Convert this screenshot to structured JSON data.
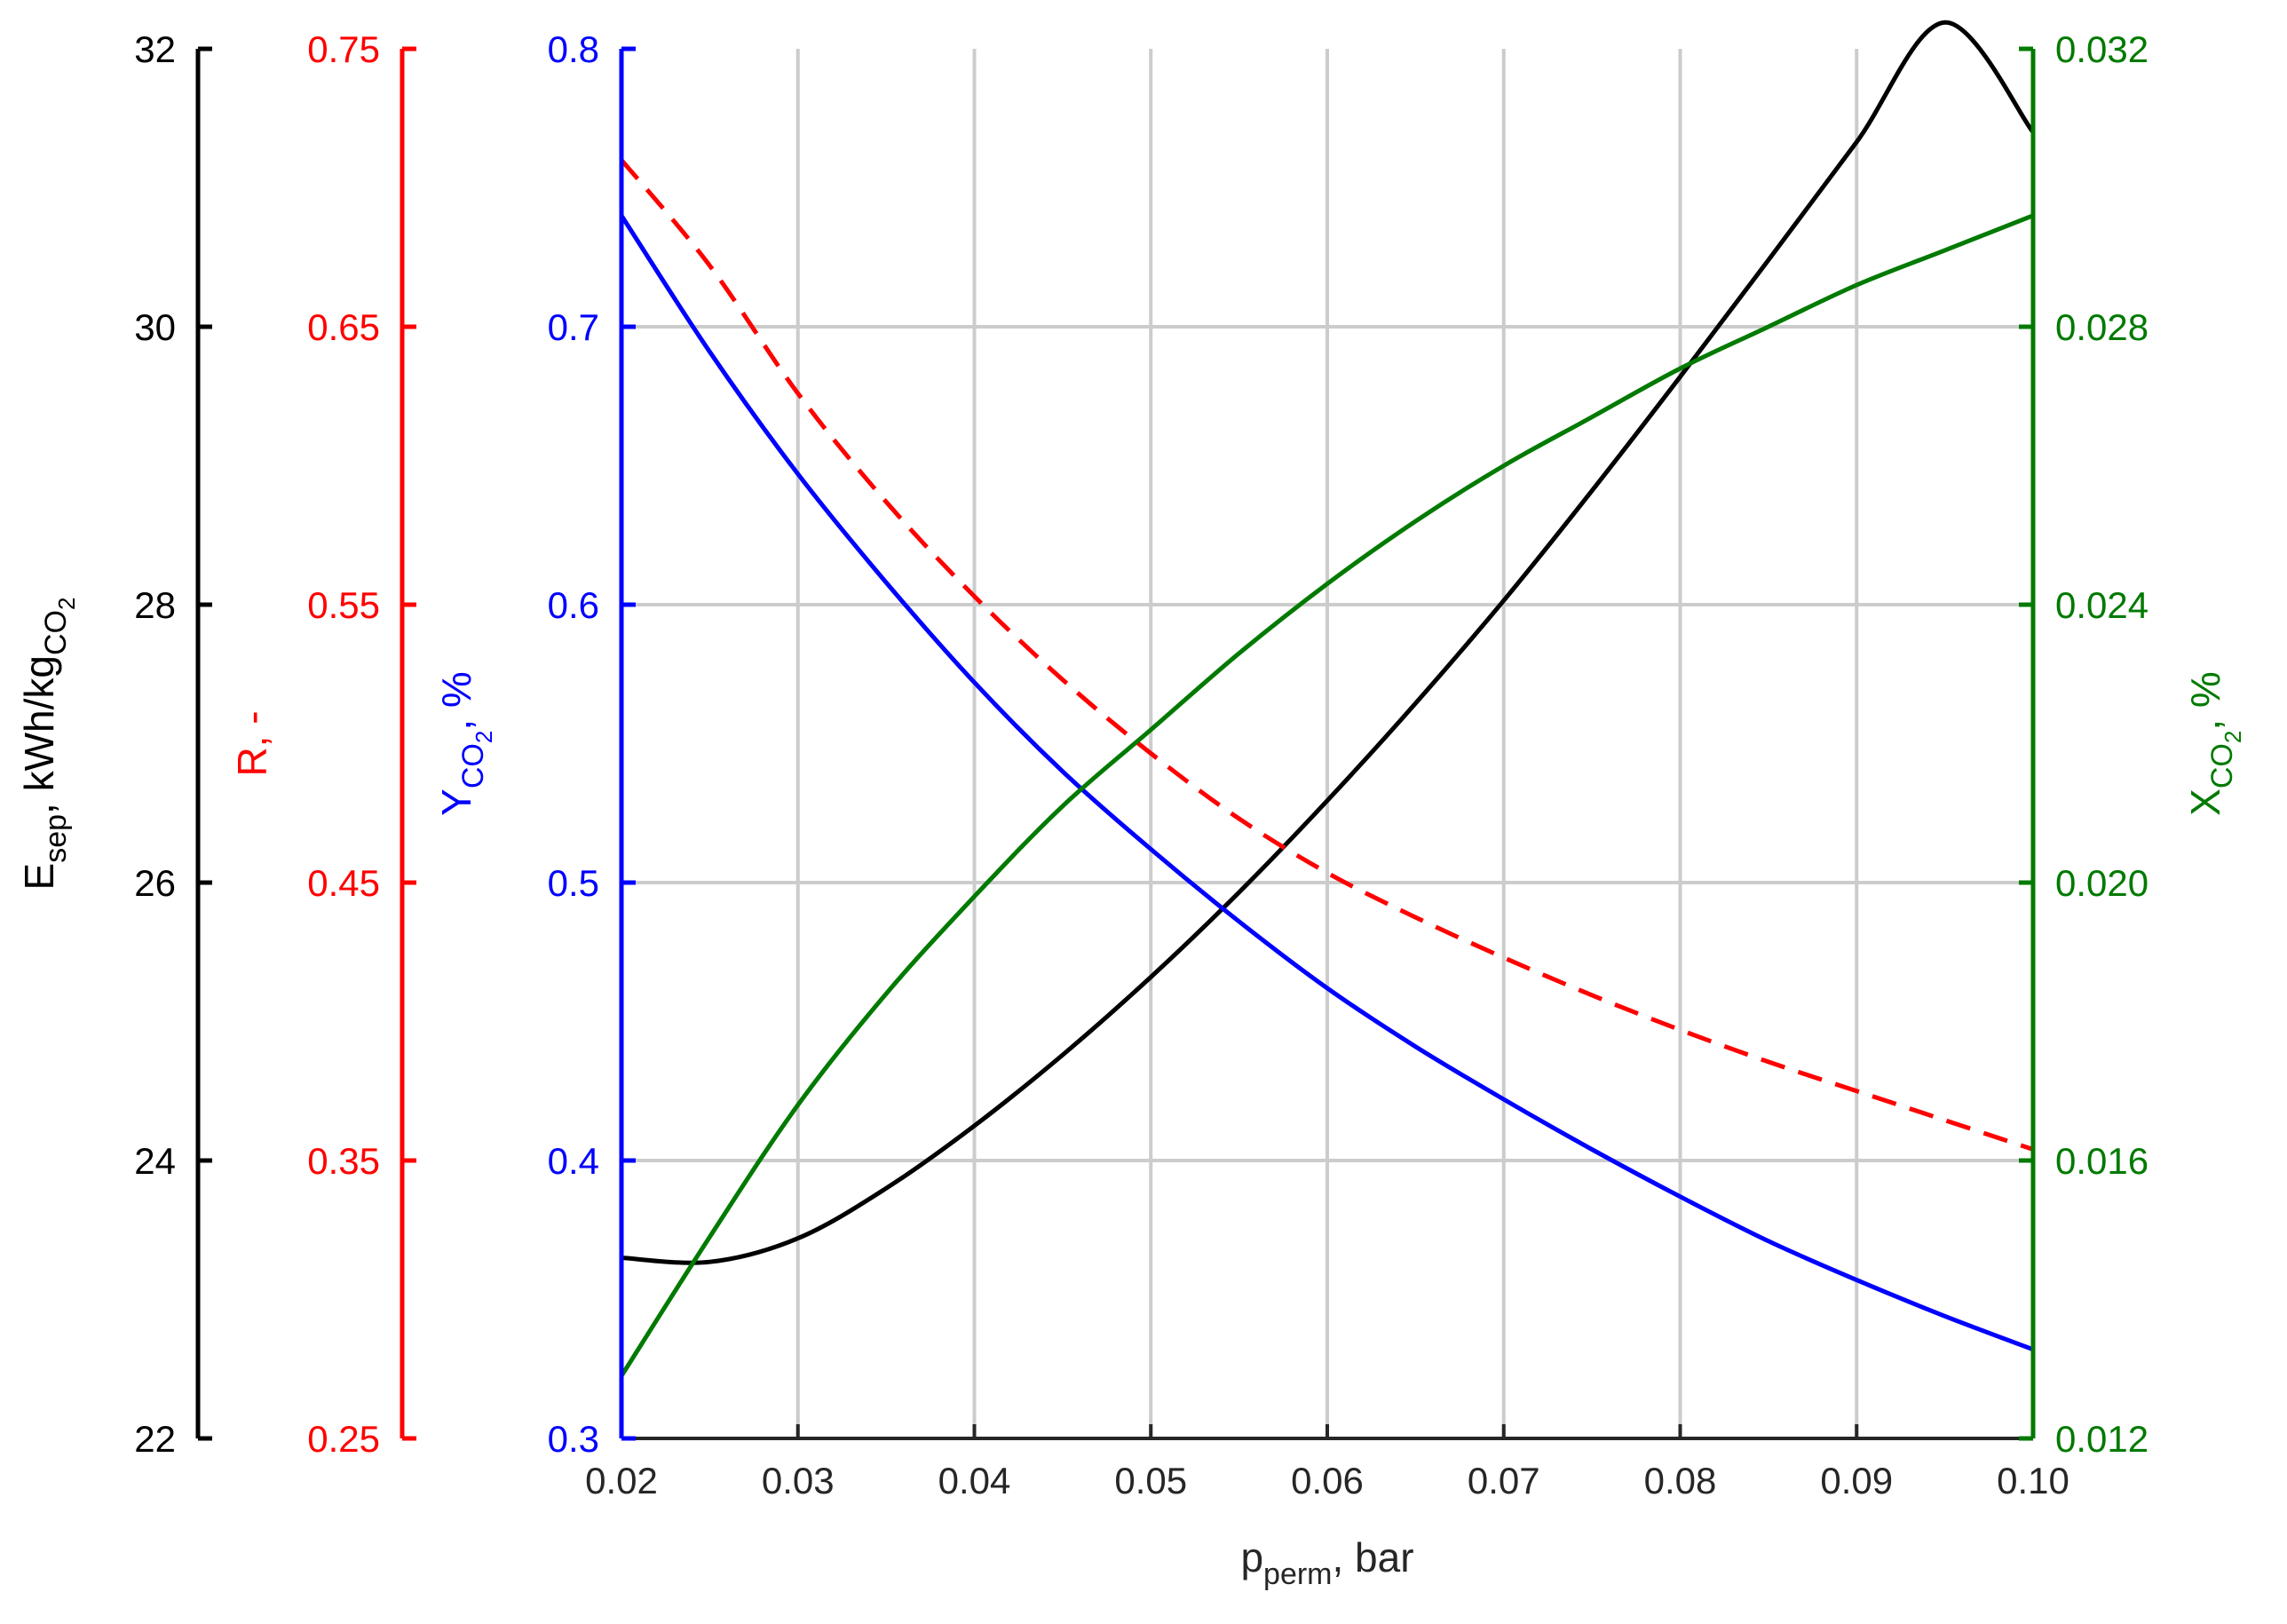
{
  "chart_data": {
    "type": "line",
    "grid": true,
    "x": [
      0.02,
      0.025,
      0.03,
      0.035,
      0.04,
      0.045,
      0.05,
      0.055,
      0.06,
      0.065,
      0.07,
      0.075,
      0.08,
      0.085,
      0.09,
      0.095,
      0.1
    ],
    "xlim": [
      0.02,
      0.1
    ],
    "x_ticks": [
      "0.02",
      "0.03",
      "0.04",
      "0.05",
      "0.06",
      "0.07",
      "0.08",
      "0.09",
      "0.10"
    ],
    "xlabel": {
      "main": "p",
      "sub": "perm",
      "rest": ", bar"
    },
    "axes": [
      {
        "id": "esep",
        "side": "left",
        "color": "#000000",
        "label": {
          "main": "E",
          "sub": "sep",
          "rest": ", kWh/kg",
          "sub2": "CO",
          "sub3": "2"
        },
        "ylim": [
          22,
          32
        ],
        "ticks": [
          "22",
          "24",
          "26",
          "28",
          "30",
          "32"
        ]
      },
      {
        "id": "r",
        "side": "left",
        "color": "#ff0000",
        "label": {
          "main": "R, -"
        },
        "ylim": [
          0.25,
          0.75
        ],
        "ticks": [
          "0.25",
          "0.35",
          "0.45",
          "0.55",
          "0.65",
          "0.75"
        ]
      },
      {
        "id": "yco2",
        "side": "left",
        "color": "#0000ff",
        "label": {
          "main": "Y",
          "sub": "CO",
          "sub2": "2",
          "rest": ", %"
        },
        "ylim": [
          0.3,
          0.8
        ],
        "ticks": [
          "0.3",
          "0.4",
          "0.5",
          "0.6",
          "0.7",
          "0.8"
        ]
      },
      {
        "id": "xco2",
        "side": "right",
        "color": "#007a00",
        "label": {
          "main": "X",
          "sub": "CO",
          "sub2": "2",
          "rest": ", %"
        },
        "ylim": [
          0.012,
          0.032
        ],
        "ticks": [
          "0.012",
          "0.016",
          "0.020",
          "0.024",
          "0.028",
          "0.032"
        ]
      }
    ],
    "series": [
      {
        "axis": "esep",
        "color": "#000000",
        "dash": false,
        "values": [
          23.3,
          23.27,
          23.44,
          23.8,
          24.25,
          24.76,
          25.32,
          25.93,
          26.59,
          27.29,
          28.03,
          28.82,
          29.64,
          30.48,
          31.33,
          32.19,
          31.4
        ]
      },
      {
        "axis": "r",
        "color": "#ff0000",
        "dash": true,
        "values": [
          0.71,
          0.672,
          0.626,
          0.587,
          0.553,
          0.523,
          0.4965,
          0.473,
          0.4535,
          0.4375,
          0.423,
          0.4095,
          0.397,
          0.3855,
          0.375,
          0.3645,
          0.354
        ]
      },
      {
        "axis": "yco2",
        "color": "#0000ff",
        "dash": false,
        "values": [
          0.74,
          0.691,
          0.647,
          0.608,
          0.572,
          0.54,
          0.512,
          0.486,
          0.462,
          0.441,
          0.422,
          0.404,
          0.387,
          0.371,
          0.357,
          0.344,
          0.332
        ]
      },
      {
        "axis": "xco2",
        "color": "#007a00",
        "dash": false,
        "values": [
          0.0129,
          0.0149,
          0.0168,
          0.0184,
          0.0198,
          0.0211,
          0.0222,
          0.0233,
          0.0243,
          0.0252,
          0.026,
          0.0267,
          0.0274,
          0.028,
          0.0286,
          0.0291,
          0.0296
        ]
      }
    ]
  }
}
